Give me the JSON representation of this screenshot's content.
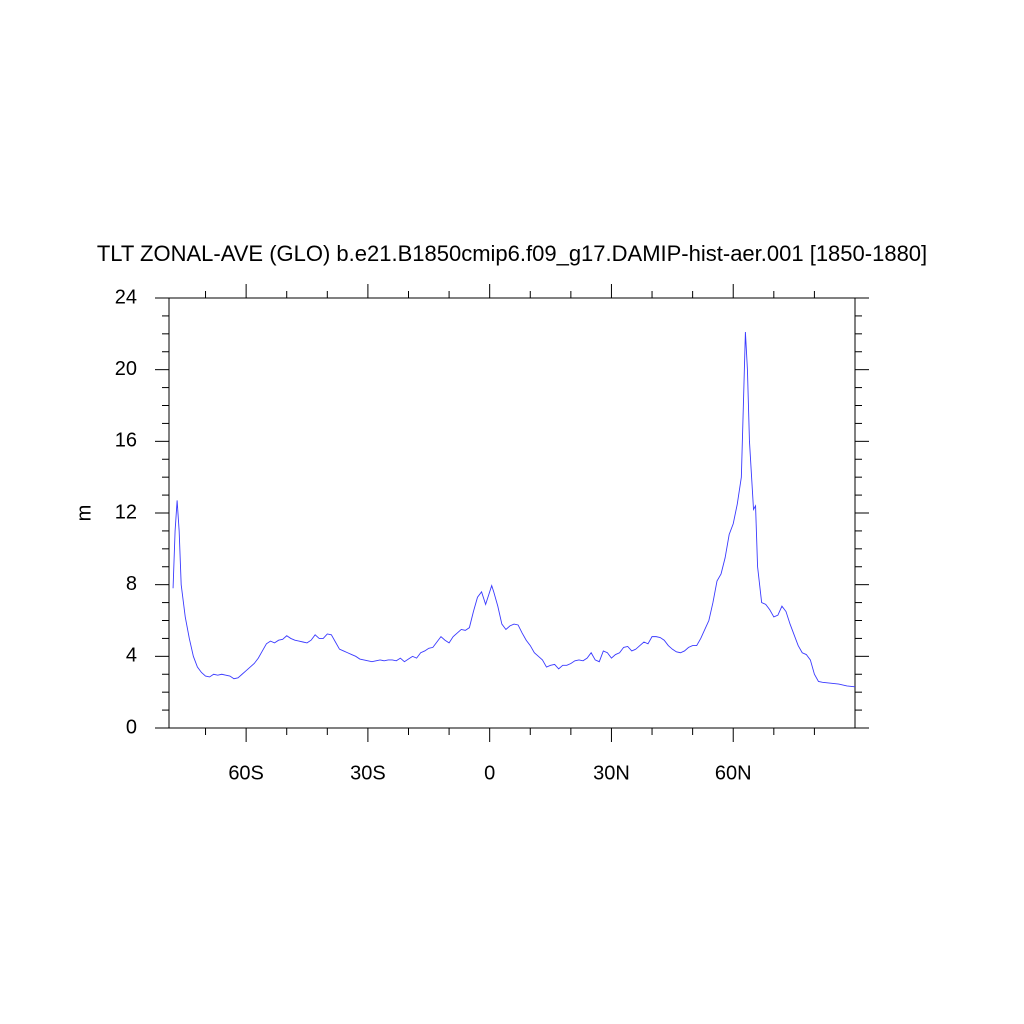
{
  "chart_data": {
    "type": "line",
    "title": "TLT ZONAL-AVE (GLO) b.e21.B1850cmip6.f09_g17.DAMIP-hist-aer.001 [1850-1880]",
    "ylabel": "m",
    "xlim": [
      -79,
      90
    ],
    "ylim": [
      0,
      24
    ],
    "xticks": [
      {
        "value": -60,
        "label": "60S"
      },
      {
        "value": -30,
        "label": "30S"
      },
      0,
      {
        "value": 30,
        "label": "30N"
      },
      {
        "value": 60,
        "label": "60N"
      }
    ],
    "xminor": [
      -70,
      -50,
      -40,
      -20,
      -10,
      10,
      20,
      40,
      50,
      70,
      80
    ],
    "yticks": [
      0,
      4,
      8,
      12,
      16,
      20,
      24
    ],
    "yminor": [
      1,
      2,
      3,
      5,
      6,
      7,
      9,
      10,
      11,
      13,
      14,
      15,
      17,
      18,
      19,
      21,
      22,
      23
    ],
    "series": [
      {
        "color": "#3a3aff",
        "x": [
          -78,
          -77.5,
          -77,
          -76.5,
          -76,
          -75,
          -74,
          -73,
          -72,
          -71,
          -70,
          -69,
          -68,
          -67,
          -66,
          -65,
          -64,
          -63,
          -62,
          -61,
          -60,
          -59,
          -58,
          -57,
          -56,
          -55,
          -54,
          -53,
          -52,
          -51,
          -50,
          -49,
          -48,
          -47,
          -46,
          -45,
          -44,
          -43,
          -42,
          -41,
          -40,
          -39,
          -38,
          -37,
          -36,
          -35,
          -34,
          -33,
          -32,
          -31,
          -30,
          -29,
          -28,
          -27,
          -26,
          -25,
          -24,
          -23,
          -22,
          -21,
          -20,
          -19,
          -18,
          -17,
          -16,
          -15,
          -14,
          -13,
          -12,
          -11,
          -10,
          -9,
          -8,
          -7,
          -6,
          -5,
          -4,
          -3,
          -2,
          -1,
          0,
          0.5,
          1,
          2,
          3,
          4,
          5,
          6,
          7,
          8,
          9,
          10,
          11,
          12,
          13,
          14,
          15,
          16,
          17,
          18,
          19,
          20,
          21,
          22,
          23,
          24,
          25,
          26,
          27,
          28,
          29,
          30,
          31,
          32,
          33,
          34,
          35,
          36,
          37,
          38,
          39,
          40,
          41,
          42,
          43,
          44,
          45,
          46,
          47,
          48,
          49,
          50,
          51,
          52,
          53,
          54,
          55,
          56,
          57,
          58,
          59,
          60,
          61,
          62,
          62.5,
          63,
          63.5,
          64,
          65,
          65.5,
          66,
          67,
          68,
          69,
          70,
          71,
          72,
          73,
          74,
          75,
          76,
          77,
          78,
          79,
          80,
          81,
          82,
          84,
          86,
          88,
          90
        ],
        "values": [
          7.8,
          11,
          12.7,
          11,
          8,
          6.2,
          5,
          4,
          3.4,
          3.1,
          2.9,
          2.85,
          3.0,
          2.95,
          3.0,
          2.95,
          2.9,
          2.75,
          2.8,
          3.0,
          3.2,
          3.4,
          3.6,
          3.9,
          4.3,
          4.7,
          4.85,
          4.75,
          4.9,
          4.95,
          5.15,
          5.0,
          4.9,
          4.85,
          4.8,
          4.75,
          4.9,
          5.2,
          5.0,
          5.0,
          5.25,
          5.2,
          4.8,
          4.4,
          4.3,
          4.2,
          4.1,
          4.0,
          3.85,
          3.8,
          3.75,
          3.7,
          3.75,
          3.8,
          3.75,
          3.8,
          3.8,
          3.75,
          3.9,
          3.7,
          3.85,
          4.0,
          3.9,
          4.2,
          4.3,
          4.45,
          4.5,
          4.8,
          5.1,
          4.9,
          4.75,
          5.1,
          5.3,
          5.5,
          5.45,
          5.6,
          6.5,
          7.3,
          7.6,
          6.9,
          7.6,
          7.95,
          7.6,
          6.8,
          5.8,
          5.5,
          5.7,
          5.8,
          5.75,
          5.3,
          4.9,
          4.6,
          4.2,
          4.0,
          3.8,
          3.4,
          3.5,
          3.55,
          3.3,
          3.5,
          3.5,
          3.6,
          3.75,
          3.8,
          3.75,
          3.9,
          4.2,
          3.8,
          3.7,
          4.3,
          4.2,
          3.9,
          4.1,
          4.2,
          4.5,
          4.55,
          4.3,
          4.4,
          4.6,
          4.8,
          4.7,
          5.1,
          5.1,
          5.05,
          4.9,
          4.6,
          4.4,
          4.25,
          4.2,
          4.3,
          4.5,
          4.6,
          4.6,
          5.0,
          5.5,
          6.0,
          7.0,
          8.2,
          8.6,
          9.5,
          10.8,
          11.4,
          12.5,
          14.0,
          18,
          22.1,
          20,
          16,
          12.2,
          12.4,
          9,
          7.0,
          6.9,
          6.6,
          6.2,
          6.3,
          6.8,
          6.5,
          5.8,
          5.2,
          4.6,
          4.2,
          4.1,
          3.8,
          3.0,
          2.6,
          2.55,
          2.5,
          2.45,
          2.35,
          2.3
        ]
      }
    ]
  }
}
